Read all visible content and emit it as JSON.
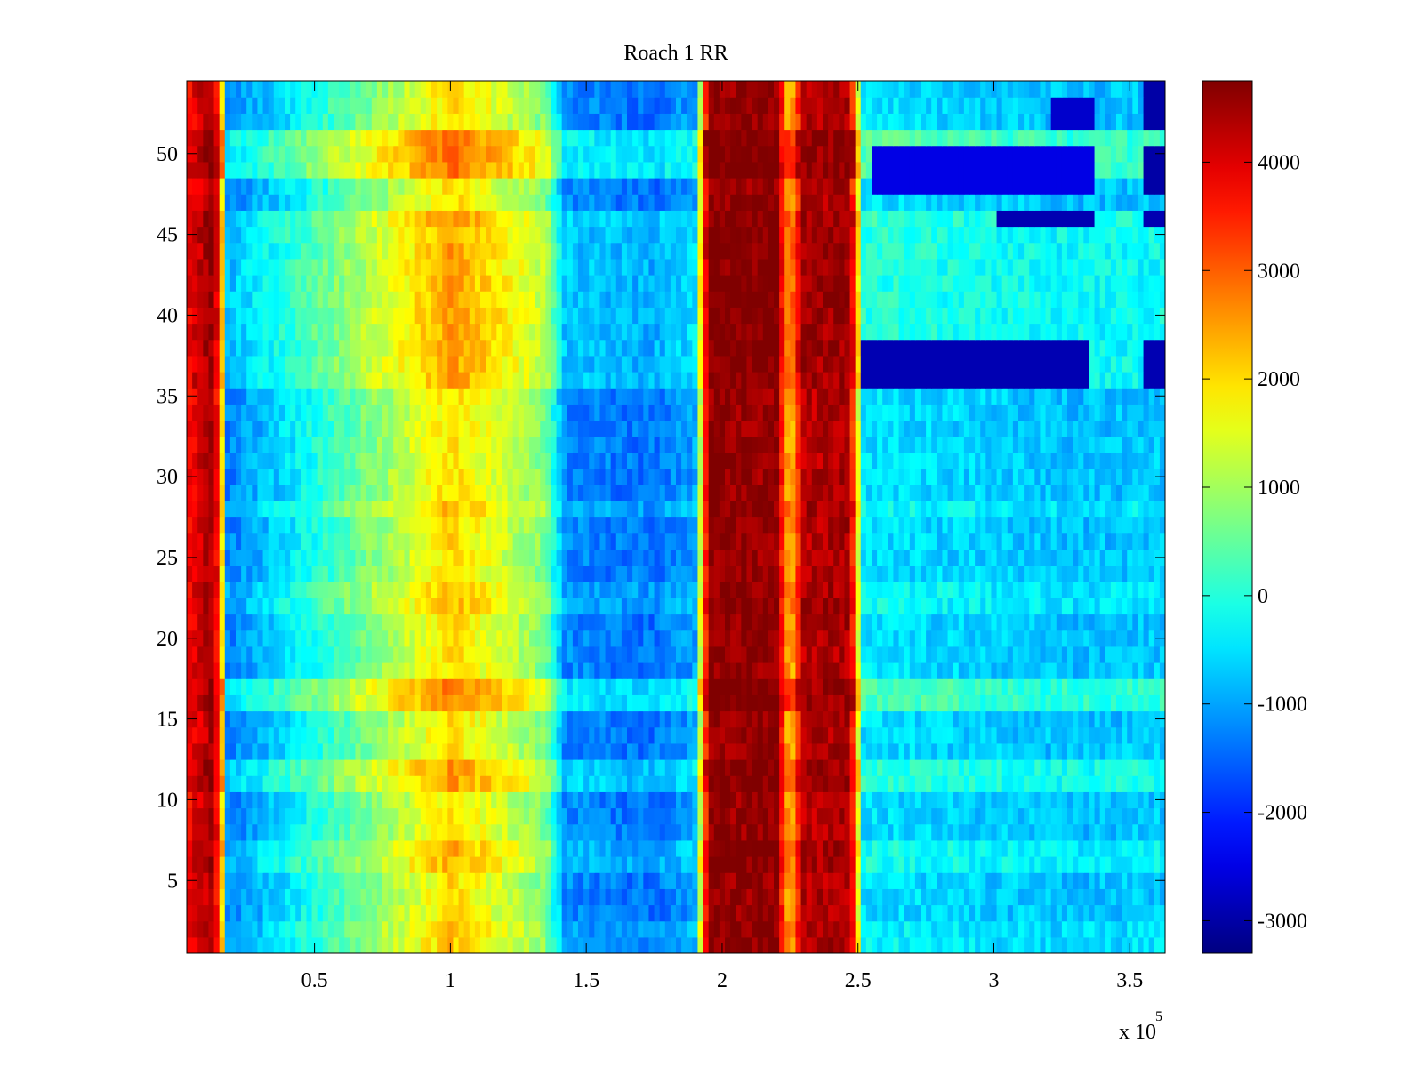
{
  "chart_data": {
    "type": "heatmap",
    "title": "Roach 1 RR",
    "xlabel": "",
    "ylabel": "",
    "x_exponent_label": "x 10",
    "x_exponent_power": "5",
    "x_range": [
      0.03,
      3.63
    ],
    "y_range": [
      0.5,
      54.5
    ],
    "n_rows": 54,
    "x_ticks": [
      {
        "value": 0.5,
        "label": "0.5"
      },
      {
        "value": 1,
        "label": "1"
      },
      {
        "value": 1.5,
        "label": "1.5"
      },
      {
        "value": 2,
        "label": "2"
      },
      {
        "value": 2.5,
        "label": "2.5"
      },
      {
        "value": 3,
        "label": "3"
      },
      {
        "value": 3.5,
        "label": "3.5"
      }
    ],
    "y_ticks": [
      {
        "value": 5,
        "label": "5"
      },
      {
        "value": 10,
        "label": "10"
      },
      {
        "value": 15,
        "label": "15"
      },
      {
        "value": 20,
        "label": "20"
      },
      {
        "value": 25,
        "label": "25"
      },
      {
        "value": 30,
        "label": "30"
      },
      {
        "value": 35,
        "label": "35"
      },
      {
        "value": 40,
        "label": "40"
      },
      {
        "value": 45,
        "label": "45"
      },
      {
        "value": 50,
        "label": "50"
      }
    ],
    "colorbar": {
      "colormap": "jet",
      "range": [
        -3300,
        4750
      ],
      "ticks": [
        {
          "value": 4000,
          "label": "4000"
        },
        {
          "value": 3000,
          "label": "3000"
        },
        {
          "value": 2000,
          "label": "2000"
        },
        {
          "value": 1000,
          "label": "1000"
        },
        {
          "value": 0,
          "label": "0"
        },
        {
          "value": -1000,
          "label": "-1000"
        },
        {
          "value": -2000,
          "label": "-2000"
        },
        {
          "value": -3000,
          "label": "-3000"
        }
      ]
    },
    "column_profile": [
      {
        "x": 0.03,
        "value": 3700
      },
      {
        "x": 0.12,
        "value": 4400
      },
      {
        "x": 0.15,
        "value": 3500
      },
      {
        "x": 0.18,
        "value": -1300
      },
      {
        "x": 0.35,
        "value": -700
      },
      {
        "x": 0.6,
        "value": 300
      },
      {
        "x": 0.85,
        "value": 1300
      },
      {
        "x": 1.0,
        "value": 2000
      },
      {
        "x": 1.15,
        "value": 1500
      },
      {
        "x": 1.35,
        "value": 700
      },
      {
        "x": 1.42,
        "value": -1200
      },
      {
        "x": 1.75,
        "value": -1400
      },
      {
        "x": 1.9,
        "value": -1000
      },
      {
        "x": 1.95,
        "value": 4600
      },
      {
        "x": 2.2,
        "value": 4600
      },
      {
        "x": 2.25,
        "value": 2000
      },
      {
        "x": 2.3,
        "value": 4300
      },
      {
        "x": 2.47,
        "value": 4400
      },
      {
        "x": 2.52,
        "value": -500
      },
      {
        "x": 3.3,
        "value": -800
      },
      {
        "x": 3.63,
        "value": -700
      }
    ],
    "row_bands": [
      {
        "rows": [
          1,
          2
        ],
        "offset": 200
      },
      {
        "rows": [
          6,
          7
        ],
        "offset": 400
      },
      {
        "rows": [
          11,
          12
        ],
        "offset": 600
      },
      {
        "rows": [
          16,
          17
        ],
        "offset": 800
      },
      {
        "rows": [
          22,
          23
        ],
        "offset": 300
      },
      {
        "rows": [
          28,
          28
        ],
        "offset": 300
      },
      {
        "rows": [
          36,
          45
        ],
        "offset": 500
      },
      {
        "rows": [
          46,
          46
        ],
        "offset": 600
      },
      {
        "rows": [
          49,
          51
        ],
        "offset": 900
      }
    ],
    "dark_blue_patches": [
      {
        "rows": [
          36,
          38
        ],
        "x": [
          2.52,
          3.35
        ],
        "value": -2900
      },
      {
        "rows": [
          36,
          38
        ],
        "x": [
          3.55,
          3.63
        ],
        "value": -2900
      },
      {
        "rows": [
          46,
          46
        ],
        "x": [
          3.0,
          3.36
        ],
        "value": -2900
      },
      {
        "rows": [
          46,
          46
        ],
        "x": [
          3.55,
          3.63
        ],
        "value": -2900
      },
      {
        "rows": [
          48,
          50
        ],
        "x": [
          2.55,
          3.36
        ],
        "value": -2500
      },
      {
        "rows": [
          48,
          50
        ],
        "x": [
          3.55,
          3.63
        ],
        "value": -3000
      },
      {
        "rows": [
          52,
          53
        ],
        "x": [
          3.2,
          3.36
        ],
        "value": -2700
      },
      {
        "rows": [
          52,
          54
        ],
        "x": [
          3.55,
          3.63
        ],
        "value": -3000
      }
    ]
  }
}
